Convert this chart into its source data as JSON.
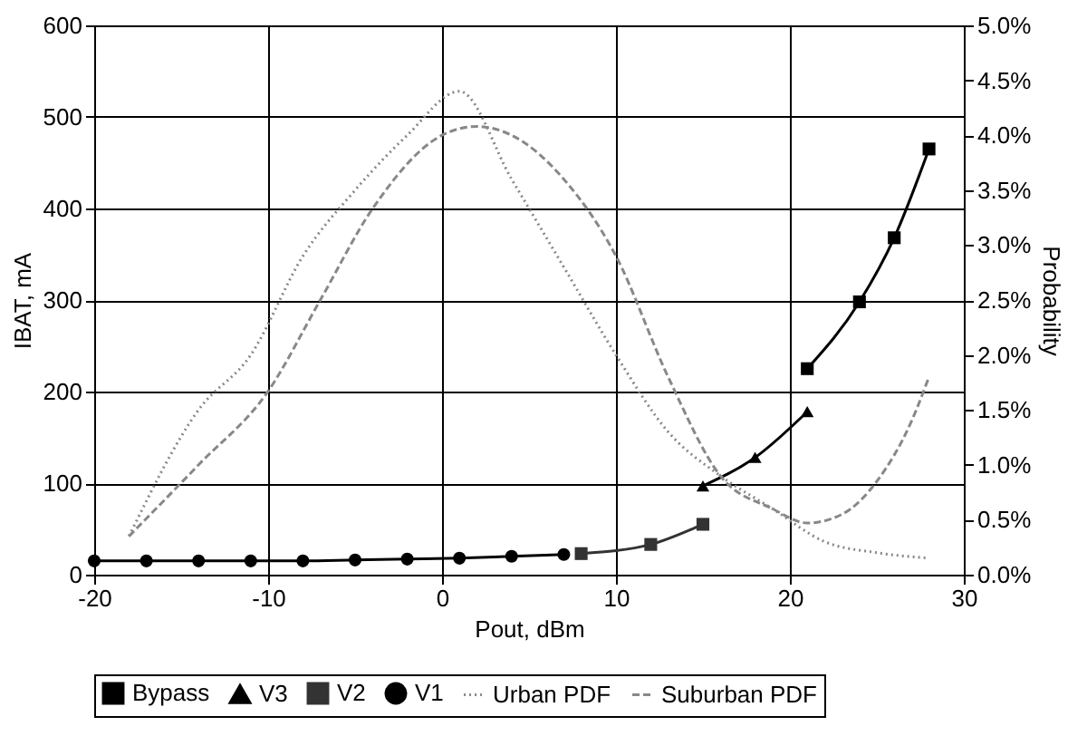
{
  "chart_data": {
    "type": "line",
    "xlabel": "Pout, dBm",
    "ylabel": "IBAT, mA",
    "y2label": "Probability",
    "xlim": [
      -20,
      30
    ],
    "xticks": [
      -20,
      -10,
      0,
      10,
      20,
      30
    ],
    "ylim": [
      0,
      600
    ],
    "yticks": [
      0,
      100,
      200,
      300,
      400,
      500,
      600
    ],
    "y2lim": [
      0,
      5
    ],
    "y2ticks": [
      {
        "value": 0,
        "label": "0.0%"
      },
      {
        "value": 0.5,
        "label": "0.5%"
      },
      {
        "value": 1,
        "label": "1.0%"
      },
      {
        "value": 1.5,
        "label": "1.5%"
      },
      {
        "value": 2,
        "label": "2.0%"
      },
      {
        "value": 2.5,
        "label": "2.5%"
      },
      {
        "value": 3,
        "label": "3.0%"
      },
      {
        "value": 3.5,
        "label": "3.5%"
      },
      {
        "value": 4,
        "label": "4.0%"
      },
      {
        "value": 4.5,
        "label": "4.5%"
      },
      {
        "value": 5,
        "label": "5.0%"
      }
    ],
    "grid": true,
    "legend": "bottom",
    "series": [
      {
        "name": "Bypass",
        "color": "#000000",
        "marker": "square",
        "line_style": "solid",
        "x": [
          21,
          24,
          26,
          28
        ],
        "values": [
          225,
          298,
          368,
          465
        ]
      },
      {
        "name": "V3",
        "color": "#000000",
        "marker": "triangle",
        "line_style": "solid",
        "x": [
          15,
          18,
          21
        ],
        "values": [
          97,
          128,
          178
        ]
      },
      {
        "name": "V2",
        "color": "#333333",
        "marker": "square",
        "line_style": "solid",
        "x": [
          8,
          12,
          15
        ],
        "values": [
          23,
          33,
          55
        ]
      },
      {
        "name": "V1",
        "color": "#000000",
        "marker": "circle",
        "line_style": "solid",
        "x": [
          -20,
          -17,
          -14,
          -11,
          -8,
          -5,
          -2,
          1,
          4,
          7
        ],
        "values": [
          15,
          15,
          15,
          15,
          15,
          16,
          17,
          18,
          20,
          22
        ]
      },
      {
        "name": "Urban PDF",
        "color": "#888888",
        "marker": "none",
        "line_style": "dotted",
        "axis": "y2",
        "x": [
          -18,
          -14,
          -11,
          -8,
          -5,
          -2,
          1,
          4,
          7,
          10,
          13,
          16,
          19,
          22,
          25,
          28
        ],
        "values": [
          0.35,
          1.5,
          2.0,
          2.9,
          3.5,
          4.0,
          4.4,
          3.6,
          2.8,
          2.0,
          1.3,
          0.9,
          0.6,
          0.3,
          0.2,
          0.15
        ]
      },
      {
        "name": "Suburban PDF",
        "color": "#888888",
        "marker": "none",
        "line_style": "dashed",
        "axis": "y2",
        "x": [
          -18,
          -14,
          -10,
          -7,
          -4,
          0,
          2,
          4,
          7,
          10,
          13,
          16,
          19,
          21,
          23,
          25,
          27,
          28
        ],
        "values": [
          0.35,
          1.0,
          1.67,
          2.5,
          3.33,
          4.0,
          4.08,
          4.0,
          3.6,
          2.9,
          1.8,
          0.9,
          0.6,
          0.47,
          0.55,
          0.85,
          1.4,
          1.8
        ]
      }
    ]
  }
}
